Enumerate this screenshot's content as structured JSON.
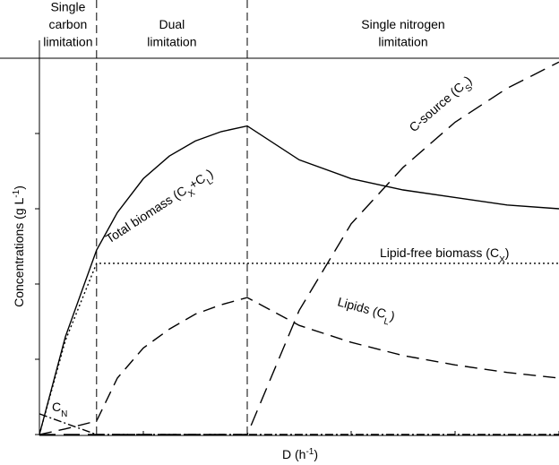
{
  "chart_data": {
    "type": "line",
    "x_label": [
      {
        "text": "D (h"
      },
      {
        "text": "-1",
        "sup": true
      },
      {
        "text": ")"
      }
    ],
    "y_label": [
      {
        "text": "Concentrations (g L"
      },
      {
        "text": "-1",
        "sup": true
      },
      {
        "text": ")"
      }
    ],
    "xlim": [
      0,
      10
    ],
    "ylim": [
      0,
      10
    ],
    "xticks": [
      0,
      2,
      4,
      6,
      8,
      10
    ],
    "yticks": [
      0,
      2,
      4,
      6,
      8,
      10
    ],
    "boundaries": [
      1.1,
      4.0
    ],
    "regions": [
      [
        "Single",
        "carbon",
        "limitation"
      ],
      [
        "Dual",
        "limitation"
      ],
      [
        "Single nitrogen",
        "limitation"
      ]
    ],
    "x": [
      0,
      0.5,
      1.1,
      1.5,
      2,
      2.5,
      3,
      3.5,
      4,
      5,
      6,
      7,
      8,
      9,
      10
    ],
    "series": [
      {
        "label": [
          {
            "text": "Total biomass (C"
          },
          {
            "text": "X",
            "sub": true
          },
          {
            "text": "+C"
          },
          {
            "text": "L",
            "sub": true
          },
          {
            "text": ")"
          }
        ],
        "color": "#000000",
        "dash": "solid",
        "values": [
          0,
          2.6,
          4.9,
          5.9,
          6.8,
          7.4,
          7.8,
          8.05,
          8.2,
          7.3,
          6.8,
          6.5,
          6.3,
          6.1,
          6.0
        ]
      },
      {
        "label": [
          {
            "text": "Lipid-free biomass (C"
          },
          {
            "text": "X",
            "sub": true
          },
          {
            "text": ")"
          }
        ],
        "color": "#000000",
        "dash": "dotted",
        "values": [
          0,
          2.5,
          4.55,
          4.55,
          4.55,
          4.55,
          4.55,
          4.55,
          4.55,
          4.55,
          4.55,
          4.55,
          4.55,
          4.55,
          4.55
        ]
      },
      {
        "label": [
          {
            "text": "Lipids (C"
          },
          {
            "text": "L",
            "sub": true
          },
          {
            "text": ")"
          }
        ],
        "color": "#000000",
        "dash": "dashed",
        "values": [
          0,
          0.15,
          0.36,
          1.5,
          2.3,
          2.8,
          3.2,
          3.45,
          3.64,
          2.9,
          2.45,
          2.1,
          1.85,
          1.65,
          1.5
        ]
      },
      {
        "label": [
          {
            "text": "C-source (C"
          },
          {
            "text": "S",
            "sub": true
          },
          {
            "text": ")"
          }
        ],
        "color": "#000000",
        "dash": "longdash",
        "values": [
          0,
          0,
          0,
          0,
          0,
          0,
          0,
          0,
          0,
          3.3,
          5.6,
          7.1,
          8.3,
          9.2,
          9.9
        ]
      },
      {
        "label": [
          {
            "text": "C"
          },
          {
            "text": "N",
            "sub": true
          }
        ],
        "color": "#000000",
        "dash": "dashdot",
        "values": [
          0.55,
          0.3,
          0,
          0,
          0,
          0,
          0,
          0,
          0,
          0,
          0,
          0,
          0,
          0,
          0
        ]
      }
    ]
  }
}
